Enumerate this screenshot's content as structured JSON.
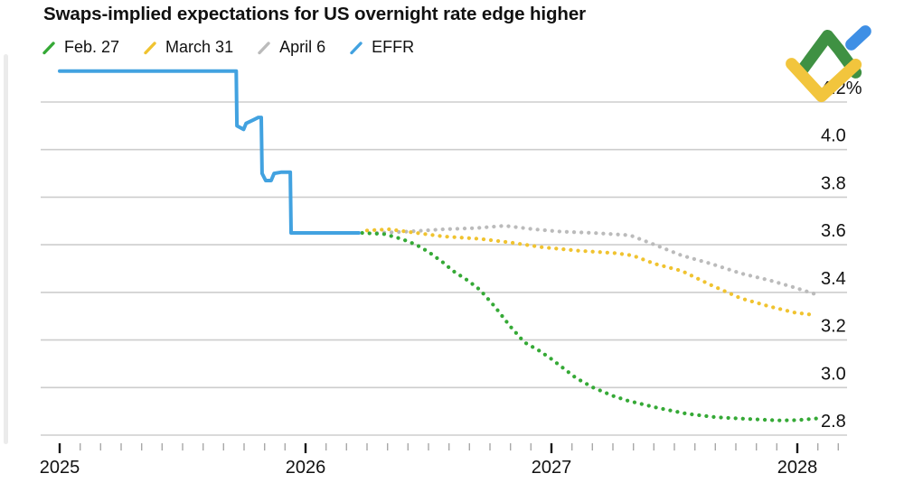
{
  "header": {
    "title": "Swaps-implied expectations for US overnight rate edge higher"
  },
  "legend": [
    {
      "label": "Feb. 27"
    },
    {
      "label": "March 31"
    },
    {
      "label": "April 6"
    },
    {
      "label": "EFFR"
    }
  ],
  "logo": {
    "name": "LiteFinance",
    "green": "#3F9143",
    "blue": "#3E8FE5",
    "yellow": "#F2C53D"
  },
  "chart_data": {
    "type": "line",
    "title": "Swaps-implied expectations for US overnight rate edge higher",
    "ylabel": "",
    "xlabel": "",
    "grid": "horizontal",
    "legend_position": "top-left",
    "y_axis": {
      "side": "right",
      "tick_values": [
        4.2,
        4.0,
        3.8,
        3.6,
        3.4,
        3.2,
        3.0,
        2.8
      ],
      "tick_labels": [
        "4.2%",
        "4.0",
        "3.8",
        "3.6",
        "3.4",
        "3.2",
        "3.0",
        "2.8"
      ],
      "range": [
        2.72,
        4.38
      ]
    },
    "x_axis": {
      "tick_values": [
        2025,
        2026,
        2027,
        2028
      ],
      "tick_labels": [
        "2025",
        "2026",
        "2027",
        "2028"
      ],
      "minor_tick_interval_years": 0.0833,
      "minor_tick_last": 2028.167,
      "range": [
        2024.92,
        2028.25
      ]
    },
    "series": [
      {
        "name": "April 6",
        "color": "#BBBBBB",
        "style": "dotted",
        "points": [
          [
            2026.29,
            3.65
          ],
          [
            2026.41,
            3.655
          ],
          [
            2026.56,
            3.665
          ],
          [
            2026.69,
            3.67
          ],
          [
            2026.81,
            3.68
          ],
          [
            2026.93,
            3.665
          ],
          [
            2027.04,
            3.655
          ],
          [
            2027.17,
            3.65
          ],
          [
            2027.32,
            3.64
          ],
          [
            2027.42,
            3.6
          ],
          [
            2027.53,
            3.555
          ],
          [
            2027.65,
            3.52
          ],
          [
            2027.77,
            3.48
          ],
          [
            2027.89,
            3.45
          ],
          [
            2027.99,
            3.42
          ],
          [
            2028.08,
            3.39
          ]
        ]
      },
      {
        "name": "March 31",
        "color": "#F0C330",
        "style": "dotted",
        "points": [
          [
            2026.25,
            3.66
          ],
          [
            2026.34,
            3.665
          ],
          [
            2026.45,
            3.65
          ],
          [
            2026.56,
            3.635
          ],
          [
            2026.71,
            3.625
          ],
          [
            2026.83,
            3.61
          ],
          [
            2026.96,
            3.59
          ],
          [
            2027.11,
            3.575
          ],
          [
            2027.26,
            3.565
          ],
          [
            2027.33,
            3.555
          ],
          [
            2027.42,
            3.52
          ],
          [
            2027.53,
            3.49
          ],
          [
            2027.65,
            3.43
          ],
          [
            2027.77,
            3.375
          ],
          [
            2027.89,
            3.34
          ],
          [
            2027.99,
            3.315
          ],
          [
            2028.07,
            3.305
          ]
        ]
      },
      {
        "name": "Feb. 27",
        "color": "#35A936",
        "style": "dotted",
        "points": [
          [
            2026.23,
            3.65
          ],
          [
            2026.32,
            3.645
          ],
          [
            2026.39,
            3.625
          ],
          [
            2026.45,
            3.6
          ],
          [
            2026.5,
            3.57
          ],
          [
            2026.56,
            3.525
          ],
          [
            2026.6,
            3.49
          ],
          [
            2026.66,
            3.45
          ],
          [
            2026.71,
            3.41
          ],
          [
            2026.77,
            3.34
          ],
          [
            2026.83,
            3.26
          ],
          [
            2026.89,
            3.19
          ],
          [
            2026.95,
            3.155
          ],
          [
            2027.0,
            3.12
          ],
          [
            2027.1,
            3.04
          ],
          [
            2027.17,
            3.0
          ],
          [
            2027.25,
            2.965
          ],
          [
            2027.31,
            2.945
          ],
          [
            2027.43,
            2.915
          ],
          [
            2027.55,
            2.89
          ],
          [
            2027.67,
            2.875
          ],
          [
            2027.8,
            2.868
          ],
          [
            2027.92,
            2.862
          ],
          [
            2028.0,
            2.863
          ],
          [
            2028.08,
            2.87
          ]
        ]
      },
      {
        "name": "EFFR",
        "color": "#42A2E0",
        "style": "solid",
        "points": [
          [
            2025.0,
            4.33
          ],
          [
            2025.718,
            4.33
          ],
          [
            2025.721,
            4.1
          ],
          [
            2025.748,
            4.085
          ],
          [
            2025.758,
            4.11
          ],
          [
            2025.788,
            4.125
          ],
          [
            2025.808,
            4.135
          ],
          [
            2025.82,
            4.135
          ],
          [
            2025.823,
            3.9
          ],
          [
            2025.838,
            3.87
          ],
          [
            2025.86,
            3.87
          ],
          [
            2025.872,
            3.9
          ],
          [
            2025.9,
            3.905
          ],
          [
            2025.938,
            3.905
          ],
          [
            2025.941,
            3.65
          ],
          [
            2026.217,
            3.65
          ]
        ]
      }
    ]
  }
}
